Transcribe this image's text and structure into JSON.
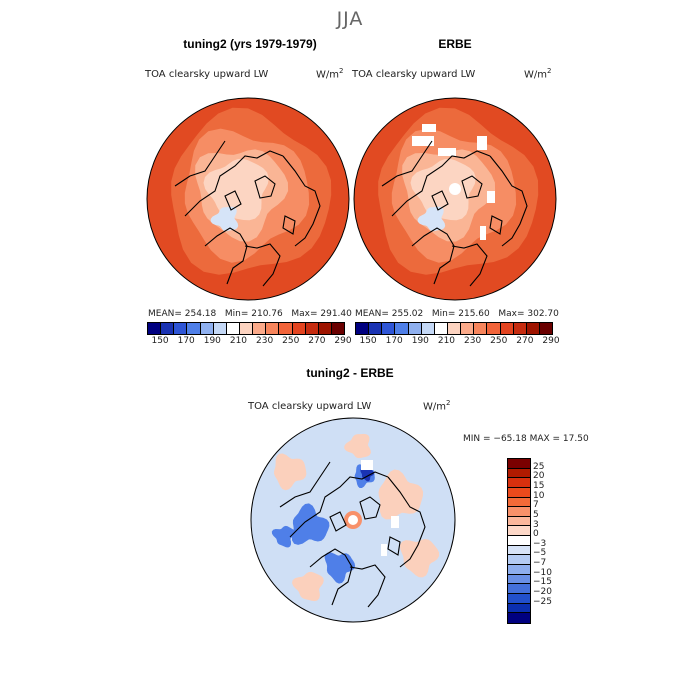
{
  "title": "JJA",
  "panels": [
    {
      "title": "tuning2 (yrs 1979-1979)",
      "variable": "TOA clearsky upward LW",
      "units_prefix": "W/m",
      "units_exp": "2",
      "mean_label": "MEAN=",
      "mean": "254.18",
      "min_label": "Min=",
      "min": "210.76",
      "max_label": "Max=",
      "max": "291.40"
    },
    {
      "title": "ERBE",
      "variable": "TOA clearsky upward LW",
      "units_prefix": "W/m",
      "units_exp": "2",
      "mean_label": "MEAN=",
      "mean": "255.02",
      "min_label": "Min=",
      "min": "215.60",
      "max_label": "Max=",
      "max": "302.70"
    }
  ],
  "abs_colorbar": {
    "colors": [
      "#000080",
      "#1a33b3",
      "#2e55d6",
      "#4f7fe8",
      "#8fb0ef",
      "#c4d8f6",
      "#ffffff",
      "#fcd3c0",
      "#fbaa8a",
      "#f7855c",
      "#f2643a",
      "#e34420",
      "#c62c10",
      "#9e1400",
      "#6a0000"
    ],
    "tick_labels": [
      "150",
      "170",
      "190",
      "210",
      "230",
      "250",
      "270",
      "290"
    ]
  },
  "diff_panel": {
    "title": "tuning2 - ERBE",
    "variable": "TOA clearsky upward LW",
    "units_prefix": "W/m",
    "units_exp": "2",
    "minmax_label": "MIN = −65.18 MAX =  17.50"
  },
  "diff_colorbar": {
    "colors": [
      "#7a0000",
      "#b01a00",
      "#d7300e",
      "#eb4a1c",
      "#f36a38",
      "#f8916a",
      "#fbb79c",
      "#fdd8c8",
      "#ffffff",
      "#d7e3f7",
      "#b4cbf3",
      "#8eaeee",
      "#6a90e6",
      "#4470db",
      "#2250cc",
      "#0b2fb0",
      "#000080"
    ],
    "tick_labels": [
      "25",
      "20",
      "15",
      "10",
      "7",
      "5",
      "3",
      "0",
      "−3",
      "−5",
      "−7",
      "−10",
      "−15",
      "−20",
      "−25"
    ]
  },
  "map_colors": {
    "outer": "#e14a22",
    "warm": "#ec6a3c",
    "mid": "#f68d64",
    "light": "#fab595",
    "pale": "#fcd5c2",
    "bluish": "#d6e4f8",
    "diff_base": "#cfdff5",
    "diff_warm": "#fbd0bc",
    "diff_blue": "#4f7fe8",
    "diff_dark": "#1a33b3"
  }
}
